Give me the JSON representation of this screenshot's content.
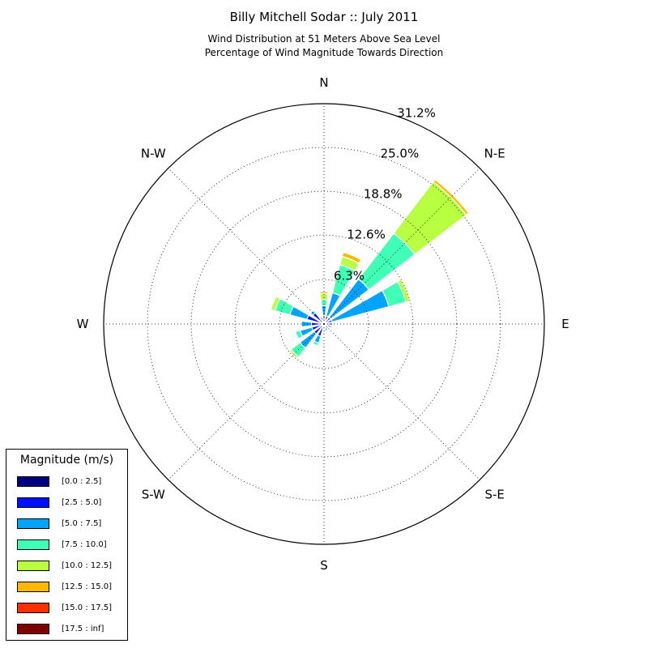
{
  "chart_data": {
    "type": "windrose",
    "title": "Billy Mitchell Sodar :: July 2011",
    "subtitle_line1": "Wind Distribution at 51 Meters Above Sea Level",
    "subtitle_line2": "Percentage of Wind Magnitude Towards Direction",
    "direction_labels": [
      {
        "key": "n",
        "label": "N",
        "angle": 0
      },
      {
        "key": "ne",
        "label": "N-E",
        "angle": 45
      },
      {
        "key": "e",
        "label": "E",
        "angle": 90
      },
      {
        "key": "se",
        "label": "S-E",
        "angle": 135
      },
      {
        "key": "s",
        "label": "S",
        "angle": 180
      },
      {
        "key": "sw",
        "label": "S-W",
        "angle": 225
      },
      {
        "key": "w",
        "label": "W",
        "angle": 270
      },
      {
        "key": "nw",
        "label": "N-W",
        "angle": 315
      }
    ],
    "radial_ticks": [
      {
        "value": 6.3,
        "label": "6.3%"
      },
      {
        "value": 12.6,
        "label": "12.6%"
      },
      {
        "value": 18.8,
        "label": "18.8%"
      },
      {
        "value": 25.0,
        "label": "25.0%"
      },
      {
        "value": 31.2,
        "label": "31.2%"
      }
    ],
    "rmax": 31.2,
    "grid": true,
    "legend": {
      "title": "Magnitude (m/s)",
      "position": "bottom-left",
      "items": [
        {
          "label": "[0.0 : 2.5]",
          "color": "#000080"
        },
        {
          "label": "[2.5 : 5.0]",
          "color": "#0010ff"
        },
        {
          "label": "[5.0 : 7.5]",
          "color": "#00a4ff"
        },
        {
          "label": "[7.5 : 10.0]",
          "color": "#40ffb7"
        },
        {
          "label": "[10.0 : 12.5]",
          "color": "#b7ff40"
        },
        {
          "label": "[12.5 : 15.0]",
          "color": "#ffb900"
        },
        {
          "label": "[15.0 : 17.5]",
          "color": "#ff3000"
        },
        {
          "label": "[17.5 : inf]",
          "color": "#800000"
        }
      ]
    },
    "sector_width_deg": 15,
    "sectors": [
      {
        "direction": 0,
        "cumulative": [
          0.3,
          1.2,
          2.6,
          3.4,
          4.3,
          4.6
        ]
      },
      {
        "direction": 22.5,
        "cumulative": [
          0.3,
          1.2,
          4.6,
          8.7,
          9.9,
          10.5
        ]
      },
      {
        "direction": 45,
        "cumulative": [
          0.3,
          1.2,
          8.0,
          16.2,
          25.4,
          25.8
        ]
      },
      {
        "direction": 67.5,
        "cumulative": [
          0.3,
          1.2,
          9.5,
          12.0,
          12.6
        ]
      },
      {
        "direction": 90,
        "cumulative": [
          0.3,
          1.2
        ]
      },
      {
        "direction": 112.5,
        "cumulative": [
          0.3,
          1.0,
          1.2
        ]
      },
      {
        "direction": 135,
        "cumulative": [
          0.3,
          0.8
        ]
      },
      {
        "direction": 157.5,
        "cumulative": [
          0.3,
          1.0
        ]
      },
      {
        "direction": 180,
        "cumulative": [
          0.3,
          0.8
        ]
      },
      {
        "direction": 202.5,
        "cumulative": [
          0.3,
          1.8,
          2.8,
          3.2
        ]
      },
      {
        "direction": 225,
        "cumulative": [
          0.3,
          1.8,
          4.3,
          5.9,
          6.2
        ]
      },
      {
        "direction": 247.5,
        "cumulative": [
          0.3,
          1.8,
          3.5,
          4.2
        ]
      },
      {
        "direction": 270,
        "cumulative": [
          0.3,
          1.8,
          3.2
        ]
      },
      {
        "direction": 292.5,
        "cumulative": [
          0.3,
          2.5,
          5.0,
          7.2,
          7.8
        ]
      },
      {
        "direction": 315,
        "cumulative": [
          0.3,
          2.0,
          2.4
        ]
      },
      {
        "direction": 337.5,
        "cumulative": [
          0.3,
          1.0
        ]
      }
    ]
  }
}
